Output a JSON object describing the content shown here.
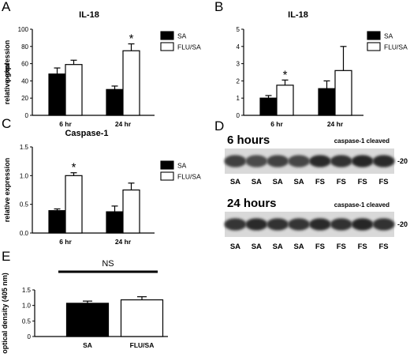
{
  "panels": [
    {
      "letter": "A",
      "chart_data": {
        "type": "bar",
        "title": "IL-18",
        "ylabel": "pg/ml",
        "xlabel": "",
        "categories": [
          "6 hr",
          "24 hr"
        ],
        "series": [
          {
            "name": "SA",
            "values": [
              48,
              30
            ],
            "errors": [
              7,
              4
            ],
            "color": "#000000"
          },
          {
            "name": "FLU/SA",
            "values": [
              59,
              75
            ],
            "errors": [
              5,
              8
            ],
            "color": "#ffffff"
          }
        ],
        "ylim": [
          0,
          100
        ],
        "yticks": [
          0,
          20,
          40,
          60,
          80,
          100
        ],
        "ytick_labels": [
          "0",
          "20",
          "40",
          "60",
          "80",
          "100"
        ],
        "significance": [
          {
            "category": "24 hr",
            "series": "FLU/SA",
            "mark": "*"
          }
        ],
        "legend_position": "top-right"
      }
    },
    {
      "letter": "B",
      "chart_data": {
        "type": "bar",
        "title": "IL-18",
        "ylabel": "relative expression",
        "xlabel": "",
        "categories": [
          "6 hr",
          "24 hr"
        ],
        "series": [
          {
            "name": "SA",
            "values": [
              1.0,
              1.55
            ],
            "errors": [
              0.15,
              0.45
            ],
            "color": "#000000"
          },
          {
            "name": "FLU/SA",
            "values": [
              1.75,
              2.6
            ],
            "errors": [
              0.3,
              1.4
            ],
            "color": "#ffffff"
          }
        ],
        "ylim": [
          0,
          5
        ],
        "yticks": [
          0,
          1,
          2,
          3,
          4,
          5
        ],
        "ytick_labels": [
          "0",
          "1",
          "2",
          "3",
          "4",
          "5"
        ],
        "significance": [
          {
            "category": "6 hr",
            "series": "FLU/SA",
            "mark": "*"
          }
        ],
        "legend_position": "top-right"
      }
    },
    {
      "letter": "C",
      "chart_data": {
        "type": "bar",
        "title": "Caspase-1",
        "ylabel": "relative expression",
        "xlabel": "",
        "categories": [
          "6 hr",
          "24 hr"
        ],
        "series": [
          {
            "name": "SA",
            "values": [
              0.39,
              0.37
            ],
            "errors": [
              0.03,
              0.1
            ],
            "color": "#000000"
          },
          {
            "name": "FLU/SA",
            "values": [
              1.0,
              0.75
            ],
            "errors": [
              0.05,
              0.12
            ],
            "color": "#ffffff"
          }
        ],
        "ylim": [
          0,
          1.5
        ],
        "yticks": [
          0,
          0.5,
          1.0,
          1.5
        ],
        "ytick_labels": [
          "0.0",
          "0.5",
          "1.0",
          "1.5"
        ],
        "significance": [
          {
            "category": "6 hr",
            "series": "FLU/SA",
            "mark": "*"
          }
        ],
        "legend_position": "top-right"
      }
    },
    {
      "letter": "E",
      "chart_data": {
        "type": "bar",
        "title": "",
        "ylabel": "optical density (405 nm)",
        "xlabel": "",
        "categories": [
          "SA",
          "FLU/SA"
        ],
        "series": [
          {
            "name": "",
            "values": [
              1.07,
              1.18
            ],
            "errors": [
              0.07,
              0.1
            ],
            "colors": [
              "#000000",
              "#ffffff"
            ]
          }
        ],
        "ylim": [
          0,
          1.5
        ],
        "yticks": [
          0,
          0.5,
          1.0,
          1.5
        ],
        "ytick_labels": [
          "0",
          "0.5",
          "1.0",
          "1.5"
        ],
        "comparison": {
          "label": "NS",
          "from": "SA",
          "to": "FLU/SA"
        }
      }
    }
  ],
  "blot": {
    "letter": "D",
    "strips": [
      {
        "time": "6 hours",
        "note": "caspase-1 cleaved",
        "kda": "-20",
        "lanes": [
          "SA",
          "SA",
          "SA",
          "SA",
          "FS",
          "FS",
          "FS",
          "FS"
        ],
        "band_intensity": [
          0.72,
          0.66,
          0.7,
          0.68,
          0.82,
          0.8,
          0.84,
          0.82
        ]
      },
      {
        "time": "24 hours",
        "note": "caspase-1 cleaved",
        "kda": "-20",
        "lanes": [
          "SA",
          "SA",
          "SA",
          "SA",
          "FS",
          "FS",
          "FS",
          "FS"
        ],
        "band_intensity": [
          0.78,
          0.82,
          0.8,
          0.78,
          0.82,
          0.8,
          0.84,
          0.8
        ]
      }
    ]
  }
}
